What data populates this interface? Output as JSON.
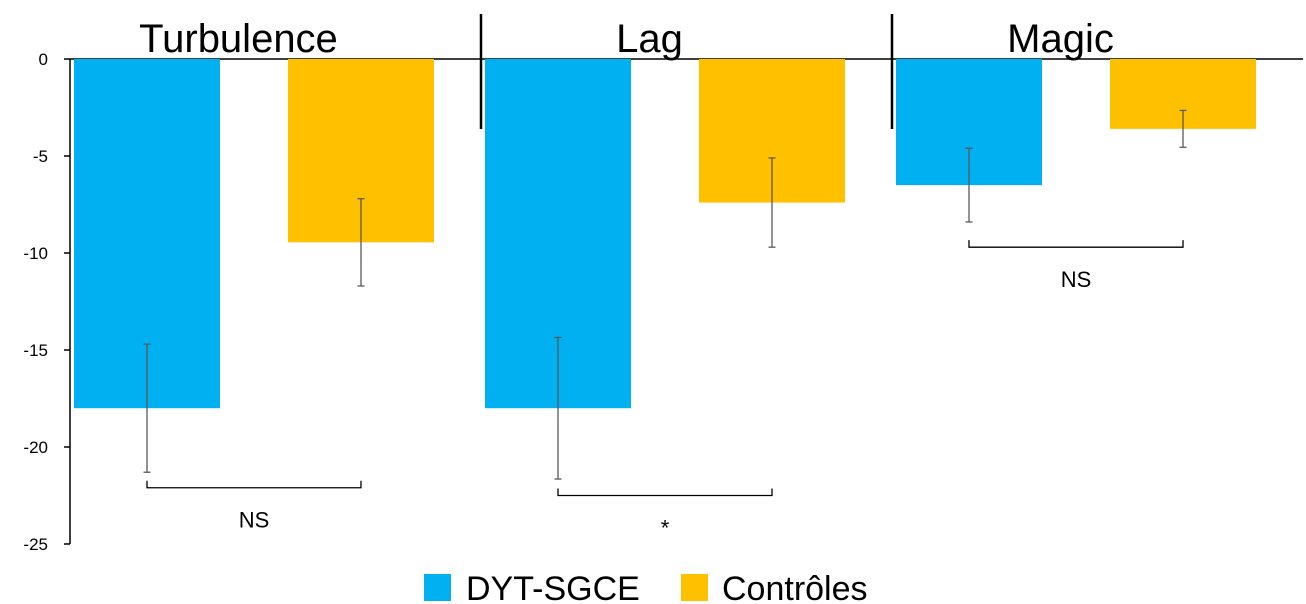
{
  "chart_data": {
    "type": "bar",
    "categories": [
      "Turbulence",
      "Lag",
      "Magic"
    ],
    "series": [
      {
        "name": "DYT-SGCE",
        "color": "#00B0F0",
        "values": [
          -18,
          -18,
          -6.5
        ],
        "errors": [
          3.3,
          3.65,
          1.9
        ]
      },
      {
        "name": "Contrôles",
        "color": "#FFC000",
        "values": [
          -9.45,
          -7.4,
          -3.6
        ],
        "errors": [
          2.25,
          2.3,
          0.95
        ]
      }
    ],
    "ylim": [
      -25,
      0
    ],
    "yticks": [
      0,
      -5,
      -10,
      -15,
      -20,
      -25
    ],
    "ytick_labels": [
      "0",
      "-5",
      "-10",
      "-15",
      "-20",
      "-25"
    ],
    "significance": [
      {
        "category": "Turbulence",
        "label": "NS",
        "at": -22.1
      },
      {
        "category": "Lag",
        "label": "*",
        "at": -22.5
      },
      {
        "category": "Magic",
        "label": "NS",
        "at": -9.7
      }
    ],
    "legend": {
      "position": "bottom",
      "entries": [
        "DYT-SGCE",
        "Contrôles"
      ]
    },
    "grid": false
  }
}
